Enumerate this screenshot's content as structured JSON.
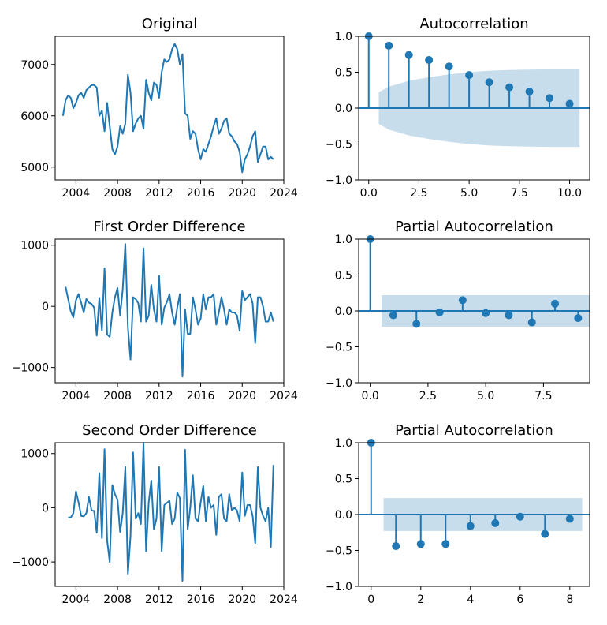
{
  "colors": {
    "line": "#1f77b4",
    "band": "#1f77b4",
    "axis": "#000000"
  },
  "chart_data": [
    {
      "type": "line",
      "title": "Original",
      "xlim": [
        2002.0,
        2024.0
      ],
      "ylim": [
        4750,
        7550
      ],
      "xticks": [
        2004,
        2008,
        2012,
        2016,
        2020,
        2024
      ],
      "yticks": [
        5000,
        6000,
        7000
      ],
      "x": [
        2002.75,
        2003.0,
        2003.25,
        2003.5,
        2003.75,
        2004.0,
        2004.25,
        2004.5,
        2004.75,
        2005.0,
        2005.25,
        2005.5,
        2005.75,
        2006.0,
        2006.25,
        2006.5,
        2006.75,
        2007.0,
        2007.25,
        2007.5,
        2007.75,
        2008.0,
        2008.25,
        2008.5,
        2008.75,
        2009.0,
        2009.25,
        2009.5,
        2009.75,
        2010.0,
        2010.25,
        2010.5,
        2010.75,
        2011.0,
        2011.25,
        2011.5,
        2011.75,
        2012.0,
        2012.25,
        2012.5,
        2012.75,
        2013.0,
        2013.25,
        2013.5,
        2013.75,
        2014.0,
        2014.25,
        2014.5,
        2014.75,
        2015.0,
        2015.25,
        2015.5,
        2015.75,
        2016.0,
        2016.25,
        2016.5,
        2016.75,
        2017.0,
        2017.25,
        2017.5,
        2017.75,
        2018.0,
        2018.25,
        2018.5,
        2018.75,
        2019.0,
        2019.25,
        2019.5,
        2019.75,
        2020.0,
        2020.25,
        2020.5,
        2020.75,
        2021.0,
        2021.25,
        2021.5,
        2021.75,
        2022.0,
        2022.25,
        2022.5,
        2022.75,
        2023.0
      ],
      "values": [
        6000,
        6300,
        6400,
        6350,
        6150,
        6250,
        6400,
        6450,
        6350,
        6500,
        6550,
        6600,
        6600,
        6550,
        6000,
        6100,
        5700,
        6250,
        5800,
        5350,
        5250,
        5400,
        5800,
        5650,
        5850,
        6800,
        6450,
        5700,
        5850,
        5950,
        6000,
        5750,
        6700,
        6450,
        6300,
        6650,
        6600,
        6350,
        6850,
        7100,
        7050,
        7100,
        7300,
        7400,
        7300,
        7000,
        7200,
        6050,
        6000,
        5550,
        5700,
        5650,
        5350,
        5150,
        5350,
        5300,
        5450,
        5600,
        5800,
        5950,
        5650,
        5750,
        5900,
        5950,
        5650,
        5600,
        5500,
        5450,
        5300,
        4900,
        5150,
        5250,
        5400,
        5600,
        5700,
        5100,
        5250,
        5400,
        5400,
        5150,
        5200,
        5150
      ]
    },
    {
      "type": "bar",
      "title": "Autocorrelation",
      "xlim": [
        -0.5,
        11.0
      ],
      "ylim": [
        -1.0,
        1.0
      ],
      "xticks": [
        0.0,
        2.5,
        5.0,
        7.5,
        10.0
      ],
      "yticks": [
        -1.0,
        -0.5,
        0.0,
        0.5,
        1.0
      ],
      "lags": [
        0,
        1,
        2,
        3,
        4,
        5,
        6,
        7,
        8,
        9,
        10
      ],
      "values": [
        1.0,
        0.87,
        0.74,
        0.67,
        0.58,
        0.46,
        0.36,
        0.29,
        0.23,
        0.14,
        0.06
      ],
      "confidence_band": {
        "x": [
          0.5,
          1,
          2,
          3,
          4,
          5,
          6,
          7,
          8,
          9,
          10,
          10.5
        ],
        "upper": [
          0.22,
          0.3,
          0.38,
          0.43,
          0.47,
          0.5,
          0.52,
          0.53,
          0.535,
          0.54,
          0.54,
          0.54
        ]
      }
    },
    {
      "type": "line",
      "title": "First Order Difference",
      "xlim": [
        2002.0,
        2024.0
      ],
      "ylim": [
        -1250,
        1100
      ],
      "xticks": [
        2004,
        2008,
        2012,
        2016,
        2020,
        2024
      ],
      "yticks": [
        -1000,
        0,
        1000
      ],
      "x": [
        2003.0,
        2003.25,
        2003.5,
        2003.75,
        2004.0,
        2004.25,
        2004.5,
        2004.75,
        2005.0,
        2005.25,
        2005.5,
        2005.75,
        2006.0,
        2006.25,
        2006.5,
        2006.75,
        2007.0,
        2007.25,
        2007.5,
        2007.75,
        2008.0,
        2008.25,
        2008.5,
        2008.75,
        2009.0,
        2009.25,
        2009.5,
        2009.75,
        2010.0,
        2010.25,
        2010.5,
        2010.75,
        2011.0,
        2011.25,
        2011.5,
        2011.75,
        2012.0,
        2012.25,
        2012.5,
        2012.75,
        2013.0,
        2013.25,
        2013.5,
        2013.75,
        2014.0,
        2014.25,
        2014.5,
        2014.75,
        2015.0,
        2015.25,
        2015.5,
        2015.75,
        2016.0,
        2016.25,
        2016.5,
        2016.75,
        2017.0,
        2017.25,
        2017.5,
        2017.75,
        2018.0,
        2018.25,
        2018.5,
        2018.75,
        2019.0,
        2019.25,
        2019.5,
        2019.75,
        2020.0,
        2020.25,
        2020.5,
        2020.75,
        2021.0,
        2021.25,
        2021.5,
        2021.75,
        2022.0,
        2022.25,
        2022.5,
        2022.75,
        2023.0
      ],
      "values": [
        320,
        120,
        -80,
        -180,
        100,
        200,
        60,
        -100,
        120,
        60,
        40,
        -20,
        -480,
        140,
        -400,
        620,
        -460,
        -500,
        -100,
        150,
        300,
        -150,
        280,
        1020,
        -350,
        -870,
        150,
        120,
        50,
        -250,
        950,
        -250,
        -150,
        350,
        -50,
        -250,
        500,
        -300,
        -20,
        70,
        200,
        -100,
        -300,
        -20,
        200,
        -1150,
        -50,
        -450,
        -450,
        150,
        -50,
        -300,
        -200,
        200,
        -50,
        150,
        150,
        200,
        -300,
        -100,
        150,
        -50,
        -300,
        -50,
        -100,
        -100,
        -150,
        -400,
        250,
        100,
        150,
        200,
        50,
        -600,
        150,
        150,
        0,
        -250,
        -250,
        -100,
        -250
      ]
    },
    {
      "type": "bar",
      "title": "Partial Autocorrelation",
      "xlim": [
        -0.5,
        9.5
      ],
      "ylim": [
        -1.0,
        1.0
      ],
      "xticks": [
        0.0,
        2.5,
        5.0,
        7.5
      ],
      "yticks": [
        -1.0,
        -0.5,
        0.0,
        0.5,
        1.0
      ],
      "lags": [
        0,
        1,
        2,
        3,
        4,
        5,
        6,
        7,
        8,
        9
      ],
      "values": [
        1.0,
        -0.06,
        -0.18,
        -0.02,
        0.15,
        -0.03,
        -0.06,
        -0.16,
        0.1,
        -0.1
      ],
      "confidence_band": {
        "x": [
          0.5,
          9.5
        ],
        "upper": [
          0.22,
          0.22
        ]
      }
    },
    {
      "type": "line",
      "title": "Second Order Difference",
      "xlim": [
        2002.0,
        2024.0
      ],
      "ylim": [
        -1450,
        1200
      ],
      "xticks": [
        2004,
        2008,
        2012,
        2016,
        2020,
        2024
      ],
      "yticks": [
        -1000,
        0,
        1000
      ],
      "x": [
        2003.25,
        2003.5,
        2003.75,
        2004.0,
        2004.25,
        2004.5,
        2004.75,
        2005.0,
        2005.25,
        2005.5,
        2005.75,
        2006.0,
        2006.25,
        2006.5,
        2006.75,
        2007.0,
        2007.25,
        2007.5,
        2007.75,
        2008.0,
        2008.25,
        2008.5,
        2008.75,
        2009.0,
        2009.25,
        2009.5,
        2009.75,
        2010.0,
        2010.25,
        2010.5,
        2010.75,
        2011.0,
        2011.25,
        2011.5,
        2011.75,
        2012.0,
        2012.25,
        2012.5,
        2012.75,
        2013.0,
        2013.25,
        2013.5,
        2013.75,
        2014.0,
        2014.25,
        2014.5,
        2014.75,
        2015.0,
        2015.25,
        2015.5,
        2015.75,
        2016.0,
        2016.25,
        2016.5,
        2016.75,
        2017.0,
        2017.25,
        2017.5,
        2017.75,
        2018.0,
        2018.25,
        2018.5,
        2018.75,
        2019.0,
        2019.25,
        2019.5,
        2019.75,
        2020.0,
        2020.25,
        2020.5,
        2020.75,
        2021.0,
        2021.25,
        2021.5,
        2021.75,
        2022.0,
        2022.25,
        2022.5,
        2022.75,
        2023.0
      ],
      "values": [
        -180,
        -180,
        -100,
        300,
        100,
        -150,
        -160,
        -100,
        200,
        -50,
        -60,
        -460,
        640,
        -560,
        1080,
        -600,
        -1000,
        420,
        250,
        150,
        -450,
        -100,
        750,
        -1230,
        -520,
        1020,
        -200,
        -100,
        -300,
        1200,
        -800,
        100,
        500,
        -400,
        -200,
        750,
        -800,
        50,
        90,
        130,
        -300,
        -200,
        280,
        180,
        -1350,
        1070,
        -400,
        0,
        600,
        -200,
        -250,
        100,
        400,
        -250,
        200,
        0,
        50,
        -500,
        200,
        250,
        -200,
        -250,
        250,
        -50,
        0,
        -50,
        -250,
        650,
        -150,
        50,
        50,
        -150,
        -650,
        750,
        0,
        -150,
        -250,
        0,
        -730,
        790
      ]
    },
    {
      "type": "bar",
      "title": "Partial Autocorrelation",
      "xlim": [
        -0.5,
        8.8
      ],
      "ylim": [
        -1.0,
        1.0
      ],
      "xticks": [
        0,
        2,
        4,
        6,
        8
      ],
      "yticks": [
        -1.0,
        -0.5,
        0.0,
        0.5,
        1.0
      ],
      "lags": [
        0,
        1,
        2,
        3,
        4,
        5,
        6,
        7,
        8
      ],
      "values": [
        1.0,
        -0.44,
        -0.41,
        -0.41,
        -0.16,
        -0.12,
        -0.03,
        -0.27,
        -0.06
      ],
      "confidence_band": {
        "x": [
          0.5,
          8.5
        ],
        "upper": [
          0.23,
          0.23
        ]
      }
    }
  ]
}
